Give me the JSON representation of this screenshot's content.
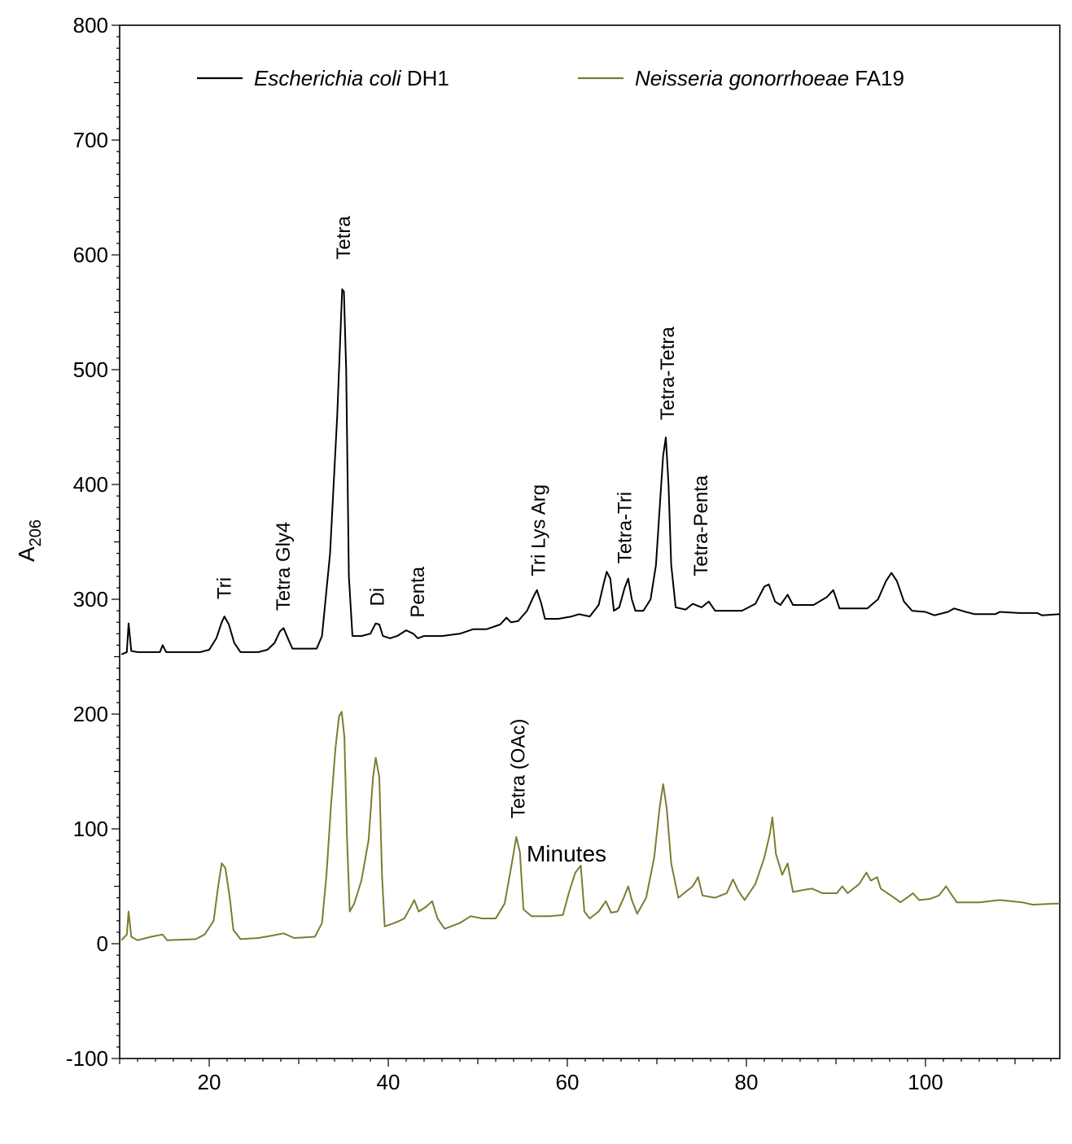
{
  "chart_data": {
    "type": "line",
    "xlabel": "Minutes",
    "ylabel_main": "A",
    "ylabel_sub": "206",
    "xlim": [
      10,
      115
    ],
    "ylim": [
      -100,
      800
    ],
    "x_ticks": [
      20,
      40,
      60,
      80,
      100
    ],
    "y_ticks": [
      -100,
      0,
      100,
      200,
      300,
      400,
      500,
      600,
      700,
      800
    ],
    "grid": false,
    "legend_position": "top",
    "series": [
      {
        "name_italic": "Escherichia coli",
        "name_rest": " DH1",
        "color": "#000000",
        "points": [
          [
            10.2,
            252
          ],
          [
            10.8,
            254
          ],
          [
            11.0,
            279
          ],
          [
            11.3,
            255
          ],
          [
            12,
            254
          ],
          [
            14.5,
            254
          ],
          [
            14.8,
            260
          ],
          [
            15.2,
            254
          ],
          [
            17,
            254
          ],
          [
            19,
            254
          ],
          [
            20,
            256
          ],
          [
            20.8,
            266
          ],
          [
            21.4,
            280
          ],
          [
            21.7,
            285
          ],
          [
            22.2,
            278
          ],
          [
            22.8,
            262
          ],
          [
            23.5,
            254
          ],
          [
            25.5,
            254
          ],
          [
            26.5,
            256
          ],
          [
            27.3,
            262
          ],
          [
            27.9,
            272
          ],
          [
            28.3,
            275
          ],
          [
            28.9,
            264
          ],
          [
            29.3,
            257
          ],
          [
            32.0,
            257
          ],
          [
            32.6,
            268
          ],
          [
            33.0,
            300
          ],
          [
            33.5,
            340
          ],
          [
            33.9,
            400
          ],
          [
            34.3,
            460
          ],
          [
            34.6,
            520
          ],
          [
            34.85,
            570
          ],
          [
            35.05,
            568
          ],
          [
            35.3,
            500
          ],
          [
            35.6,
            320
          ],
          [
            36.0,
            268
          ],
          [
            37,
            268
          ],
          [
            38,
            270
          ],
          [
            38.6,
            279
          ],
          [
            39.0,
            278
          ],
          [
            39.4,
            268
          ],
          [
            40.2,
            266
          ],
          [
            41.0,
            268
          ],
          [
            42.0,
            273
          ],
          [
            42.8,
            270
          ],
          [
            43.3,
            266
          ],
          [
            44,
            268
          ],
          [
            46,
            268
          ],
          [
            48,
            270
          ],
          [
            49.5,
            274
          ],
          [
            51,
            274
          ],
          [
            52.5,
            278
          ],
          [
            53.2,
            284
          ],
          [
            53.7,
            280
          ],
          [
            54.5,
            281
          ],
          [
            55.5,
            290
          ],
          [
            56.2,
            302
          ],
          [
            56.6,
            308
          ],
          [
            57.1,
            296
          ],
          [
            57.5,
            283
          ],
          [
            59,
            283
          ],
          [
            60.5,
            285
          ],
          [
            61.3,
            287
          ],
          [
            62.5,
            285
          ],
          [
            63.5,
            295
          ],
          [
            64.1,
            315
          ],
          [
            64.4,
            324
          ],
          [
            64.8,
            318
          ],
          [
            65.2,
            290
          ],
          [
            65.8,
            293
          ],
          [
            66.4,
            310
          ],
          [
            66.8,
            318
          ],
          [
            67.2,
            300
          ],
          [
            67.6,
            290
          ],
          [
            68.5,
            290
          ],
          [
            69.3,
            300
          ],
          [
            69.9,
            330
          ],
          [
            70.4,
            390
          ],
          [
            70.7,
            425
          ],
          [
            71.0,
            441
          ],
          [
            71.3,
            400
          ],
          [
            71.6,
            330
          ],
          [
            72.1,
            293
          ],
          [
            73.2,
            291
          ],
          [
            74.0,
            296
          ],
          [
            75.0,
            293
          ],
          [
            75.8,
            298
          ],
          [
            76.5,
            290
          ],
          [
            79.5,
            290
          ],
          [
            81,
            296
          ],
          [
            82.0,
            311
          ],
          [
            82.5,
            313
          ],
          [
            83.2,
            298
          ],
          [
            83.8,
            295
          ],
          [
            84.6,
            304
          ],
          [
            85.2,
            295
          ],
          [
            87.5,
            295
          ],
          [
            89.0,
            302
          ],
          [
            89.7,
            308
          ],
          [
            90.4,
            292
          ],
          [
            93.5,
            292
          ],
          [
            94.7,
            300
          ],
          [
            95.6,
            316
          ],
          [
            96.2,
            323
          ],
          [
            96.8,
            316
          ],
          [
            97.6,
            298
          ],
          [
            98.5,
            290
          ],
          [
            100,
            289
          ],
          [
            101,
            286
          ],
          [
            102.5,
            289
          ],
          [
            103.2,
            292
          ],
          [
            104.5,
            289
          ],
          [
            105.5,
            287
          ],
          [
            107.8,
            287
          ],
          [
            108.3,
            289
          ],
          [
            110.5,
            288
          ],
          [
            112.5,
            288
          ],
          [
            113.0,
            286
          ],
          [
            115.0,
            287
          ]
        ]
      },
      {
        "name_italic": "Neisseria gonorrhoeae",
        "name_rest": " FA19",
        "color": "#7e7c32",
        "points": [
          [
            10.2,
            3
          ],
          [
            10.8,
            8
          ],
          [
            11.0,
            28
          ],
          [
            11.3,
            6
          ],
          [
            12,
            3
          ],
          [
            13.5,
            6
          ],
          [
            14.8,
            8
          ],
          [
            15.3,
            3
          ],
          [
            18.5,
            4
          ],
          [
            19.5,
            8
          ],
          [
            20.5,
            20
          ],
          [
            21.0,
            50
          ],
          [
            21.4,
            70
          ],
          [
            21.8,
            66
          ],
          [
            22.3,
            40
          ],
          [
            22.7,
            12
          ],
          [
            23.5,
            4
          ],
          [
            25.5,
            5
          ],
          [
            27,
            7
          ],
          [
            28.3,
            9
          ],
          [
            29.5,
            5
          ],
          [
            31.8,
            6
          ],
          [
            32.6,
            18
          ],
          [
            33.1,
            60
          ],
          [
            33.6,
            120
          ],
          [
            34.1,
            170
          ],
          [
            34.5,
            198
          ],
          [
            34.8,
            202
          ],
          [
            35.1,
            180
          ],
          [
            35.4,
            90
          ],
          [
            35.7,
            28
          ],
          [
            36.2,
            35
          ],
          [
            37.0,
            55
          ],
          [
            37.8,
            90
          ],
          [
            38.3,
            145
          ],
          [
            38.6,
            162
          ],
          [
            39.0,
            145
          ],
          [
            39.3,
            60
          ],
          [
            39.6,
            15
          ],
          [
            41,
            19
          ],
          [
            41.8,
            22
          ],
          [
            42.5,
            32
          ],
          [
            42.9,
            38
          ],
          [
            43.4,
            28
          ],
          [
            44.2,
            32
          ],
          [
            44.9,
            37
          ],
          [
            45.5,
            22
          ],
          [
            46.3,
            13
          ],
          [
            48,
            18
          ],
          [
            49.2,
            24
          ],
          [
            50.5,
            22
          ],
          [
            52.0,
            22
          ],
          [
            53.0,
            35
          ],
          [
            53.8,
            70
          ],
          [
            54.3,
            93
          ],
          [
            54.7,
            80
          ],
          [
            55.1,
            30
          ],
          [
            56,
            24
          ],
          [
            58,
            24
          ],
          [
            59.5,
            25
          ],
          [
            60.2,
            45
          ],
          [
            60.9,
            62
          ],
          [
            61.5,
            68
          ],
          [
            61.9,
            28
          ],
          [
            62.5,
            22
          ],
          [
            63.5,
            28
          ],
          [
            64.3,
            37
          ],
          [
            64.9,
            27
          ],
          [
            65.6,
            28
          ],
          [
            66.3,
            40
          ],
          [
            66.8,
            50
          ],
          [
            67.2,
            38
          ],
          [
            67.8,
            26
          ],
          [
            68.8,
            40
          ],
          [
            69.7,
            75
          ],
          [
            70.3,
            118
          ],
          [
            70.7,
            139
          ],
          [
            71.1,
            118
          ],
          [
            71.6,
            70
          ],
          [
            72.4,
            40
          ],
          [
            73.2,
            45
          ],
          [
            74.0,
            50
          ],
          [
            74.6,
            58
          ],
          [
            75.1,
            42
          ],
          [
            76.5,
            40
          ],
          [
            77.8,
            44
          ],
          [
            78.5,
            56
          ],
          [
            79.1,
            46
          ],
          [
            79.8,
            38
          ],
          [
            81.0,
            52
          ],
          [
            82.0,
            75
          ],
          [
            82.6,
            95
          ],
          [
            82.9,
            110
          ],
          [
            83.3,
            78
          ],
          [
            84.0,
            60
          ],
          [
            84.6,
            70
          ],
          [
            85.2,
            45
          ],
          [
            86.5,
            47
          ],
          [
            87.3,
            48
          ],
          [
            88.5,
            44
          ],
          [
            90.1,
            44
          ],
          [
            90.7,
            50
          ],
          [
            91.3,
            44
          ],
          [
            92.6,
            52
          ],
          [
            93.4,
            62
          ],
          [
            93.9,
            55
          ],
          [
            94.6,
            58
          ],
          [
            95.0,
            48
          ],
          [
            96.5,
            40
          ],
          [
            97.2,
            36
          ],
          [
            98.1,
            41
          ],
          [
            98.6,
            44
          ],
          [
            99.3,
            38
          ],
          [
            100.5,
            39
          ],
          [
            101.5,
            42
          ],
          [
            102.3,
            50
          ],
          [
            102.8,
            44
          ],
          [
            103.5,
            36
          ],
          [
            106,
            36
          ],
          [
            108.3,
            38
          ],
          [
            109.5,
            37
          ],
          [
            110.8,
            36
          ],
          [
            112,
            34
          ],
          [
            114.5,
            35
          ],
          [
            115,
            35
          ]
        ]
      }
    ],
    "annotations": [
      {
        "text": "Tri",
        "x": 21.6,
        "y": 300
      },
      {
        "text": "Tetra Gly4",
        "x": 28.2,
        "y": 290
      },
      {
        "text": "Tetra",
        "x": 34.9,
        "y": 596
      },
      {
        "text": "Di",
        "x": 38.7,
        "y": 294
      },
      {
        "text": "Penta",
        "x": 43.2,
        "y": 284
      },
      {
        "text": "Tri Lys Arg",
        "x": 56.7,
        "y": 320
      },
      {
        "text": "Tetra-Tri",
        "x": 66.3,
        "y": 331
      },
      {
        "text": "Tetra-Tetra",
        "x": 71.1,
        "y": 456
      },
      {
        "text": "Tetra-Penta",
        "x": 74.8,
        "y": 320
      },
      {
        "text": "Tetra (OAc)",
        "x": 54.4,
        "y": 109
      }
    ]
  }
}
